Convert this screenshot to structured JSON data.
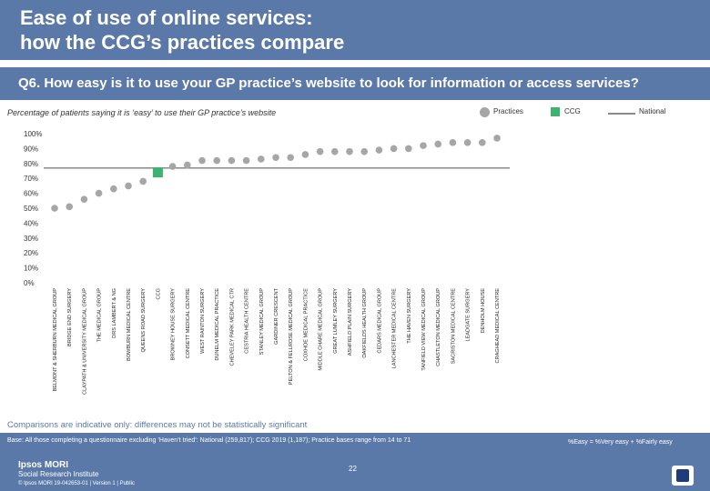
{
  "page": {
    "title_line1": "Ease of use of online services:",
    "title_line2": "how the CCG’s practices compare",
    "question": "Q6. How easy is it to use your GP practice’s website to look for information or access services?",
    "subtitle": "Percentage of patients saying it is ‘easy’ to use their GP practice’s website",
    "note": "Comparisons are indicative only: differences may not be statistically significant",
    "base": "Base: All those completing a questionnaire excluding ‘Haven’t tried’: National (259,817); CCG 2019 (1,187); Practice bases range from 14 to 71",
    "easy_definition": "%Easy = %Very easy + %Fairly easy",
    "page_number": "22",
    "brand_line1": "Ipsos MORI",
    "brand_line2": "Social Research Institute",
    "legal": "© Ipsos MORI     19-042653-01 | Version 1 | Public"
  },
  "legend": {
    "practices": "Practices",
    "ccg": "CCG",
    "national": "National"
  },
  "colors": {
    "practice_marker": "#a6a6a6",
    "ccg_marker": "#3cb371",
    "national_line": "#8a8a8a",
    "header_bg": "#5b79a8"
  },
  "chart_data": {
    "type": "scatter",
    "ylim": [
      0,
      100
    ],
    "yticks": [
      "0%",
      "10%",
      "20%",
      "30%",
      "40%",
      "50%",
      "60%",
      "70%",
      "80%",
      "90%",
      "100%"
    ],
    "national_value": 77,
    "categories": [
      "BELMONT & SHERBURN MEDICAL GROUP",
      "BRIDGE END SURGERY",
      "CLAYPATH & UNIVERSITY MEDICAL GROUP",
      "THE MEDICAL GROUP",
      "DRS LAMBERT & NG",
      "BOWBURN MEDICAL CENTRE",
      "QUEENS ROAD SURGERY",
      "CCG",
      "BROWNEY HOUSE SURGERY",
      "CONSETT MEDICAL CENTRE",
      "WEST RAINTON SURGERY",
      "DUNELM MEDICAL PRACTICE",
      "CHEVELEY PARK MEDICAL CTR",
      "CESTRIA HEALTH CENTRE",
      "STANLEY MEDICAL GROUP",
      "GARDINER CRESCENT",
      "PELTON & FELLROSE MEDICAL GROUP",
      "COXHOE MEDICAL PRACTICE",
      "MIDDLE CHARE MEDICAL GROUP",
      "GREAT LUMLEY SURGERY",
      "ASHFIELD PLAIN SURGERY",
      "OAKFIELDS HEALTH GROUP",
      "CEDARS MEDICAL GROUP",
      "LANCHESTER MEDICAL CENTRE",
      "THE HAVEN SURGERY",
      "TANFIELD VIEW MEDICAL GROUP",
      "CHASTLETON MEDICAL GROUP",
      "SACRISTON MEDICAL CENTRE",
      "LEADGATE SURGERY",
      "DENHOLM HOUSE",
      "CRAGHEAD MEDICAL CENTRE"
    ],
    "values": [
      50,
      51,
      56,
      60,
      63,
      65,
      68,
      74,
      78,
      79,
      82,
      82,
      82,
      82,
      83,
      84,
      84,
      86,
      88,
      88,
      88,
      88,
      89,
      90,
      90,
      92,
      93,
      94,
      94,
      94,
      97
    ],
    "ccg_index": 7
  }
}
